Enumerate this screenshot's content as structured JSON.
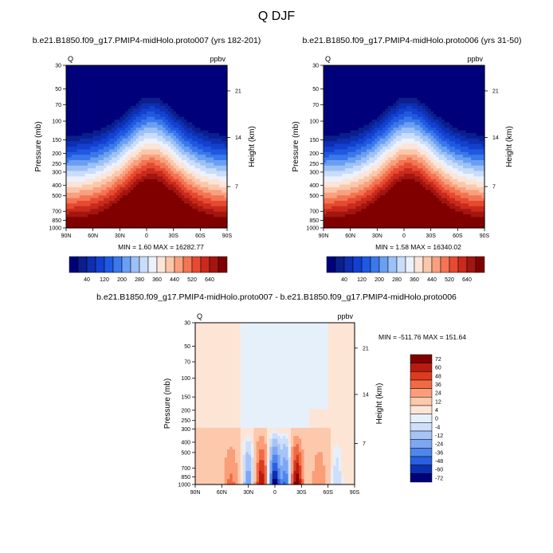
{
  "main_title": "Q DJF",
  "colors": {
    "ramp_abs": [
      "#00007a",
      "#0a1f8c",
      "#0d2fb0",
      "#1340cf",
      "#2058e0",
      "#3a78eb",
      "#6a9ff2",
      "#9cc1f6",
      "#c9dcf9",
      "#ecf1fb",
      "#fbe4d8",
      "#fbc7aa",
      "#f9a07e",
      "#f37553",
      "#e64a30",
      "#c92a1c",
      "#a3160f",
      "#800000"
    ],
    "ramp_diff": [
      "#00007a",
      "#0d2fb0",
      "#2a5fe0",
      "#4f86eb",
      "#7da7f2",
      "#a6c4f6",
      "#cddff9",
      "#e6f0fb",
      "#fde5d6",
      "#fcc9ad",
      "#f99e78",
      "#f06a44",
      "#dc3b1e",
      "#b81c10",
      "#800000"
    ]
  },
  "chart_data": [
    {
      "type": "heatmap",
      "name": "panel-left",
      "title": "b.e21.B1850.f09_g17.PMIP4-midHolo.proto007 (yrs 182-201)",
      "left_label": "Q",
      "right_label": "ppbv",
      "xlabel": "",
      "ylabel": "Pressure (mb)",
      "y2label": "Height (km)",
      "xticks": [
        "90N",
        "60N",
        "30N",
        "0",
        "30S",
        "60S",
        "90S"
      ],
      "yticks": [
        30,
        50,
        70,
        100,
        150,
        200,
        250,
        300,
        400,
        500,
        700,
        850,
        1000
      ],
      "y2ticks": [
        21,
        14,
        7
      ],
      "ylim": [
        30,
        1000
      ],
      "xlim": [
        "90N",
        "90S"
      ],
      "min_max_text": "MIN =   1.60  MAX = 16282.77",
      "min": 1.6,
      "max": 16282.77,
      "colorbar": {
        "labels": [
          40,
          120,
          200,
          280,
          360,
          440,
          520,
          640
        ]
      }
    },
    {
      "type": "heatmap",
      "name": "panel-right",
      "title": "b.e21.B1850.f09_g17.PMIP4-midHolo.proto006 (yrs 31-50)",
      "left_label": "Q",
      "right_label": "ppbv",
      "xlabel": "",
      "ylabel": "Pressure (mb)",
      "y2label": "Height (km)",
      "xticks": [
        "90N",
        "60N",
        "30N",
        "0",
        "30S",
        "60S",
        "90S"
      ],
      "yticks": [
        30,
        50,
        70,
        100,
        150,
        200,
        250,
        300,
        400,
        500,
        700,
        850,
        1000
      ],
      "y2ticks": [
        21,
        14,
        7
      ],
      "ylim": [
        30,
        1000
      ],
      "xlim": [
        "90N",
        "90S"
      ],
      "min_max_text": "MIN =   1.58  MAX = 16340.02",
      "min": 1.58,
      "max": 16340.02,
      "colorbar": {
        "labels": [
          40,
          120,
          200,
          280,
          360,
          440,
          520,
          640
        ]
      }
    },
    {
      "type": "heatmap",
      "name": "panel-diff",
      "title": "b.e21.B1850.f09_g17.PMIP4-midHolo.proto007 - b.e21.B1850.f09_g17.PMIP4-midHolo.proto006",
      "left_label": "Q",
      "right_label": "ppbv",
      "xlabel": "",
      "ylabel": "Pressure (mb)",
      "y2label": "Height (km)",
      "xticks": [
        "90N",
        "60N",
        "30N",
        "0",
        "30S",
        "60S",
        "90S"
      ],
      "yticks": [
        30,
        50,
        70,
        100,
        150,
        200,
        250,
        300,
        400,
        500,
        700,
        850,
        1000
      ],
      "y2ticks": [
        21,
        14,
        7
      ],
      "ylim": [
        30,
        1000
      ],
      "xlim": [
        "90N",
        "90S"
      ],
      "min_max_text": "MIN = -511.76  MAX = 151.64",
      "min": -511.76,
      "max": 151.64,
      "colorbar": {
        "labels": [
          72,
          60,
          48,
          36,
          24,
          12,
          4,
          0,
          -4,
          -12,
          -24,
          -36,
          -48,
          -60,
          -72
        ]
      }
    }
  ]
}
